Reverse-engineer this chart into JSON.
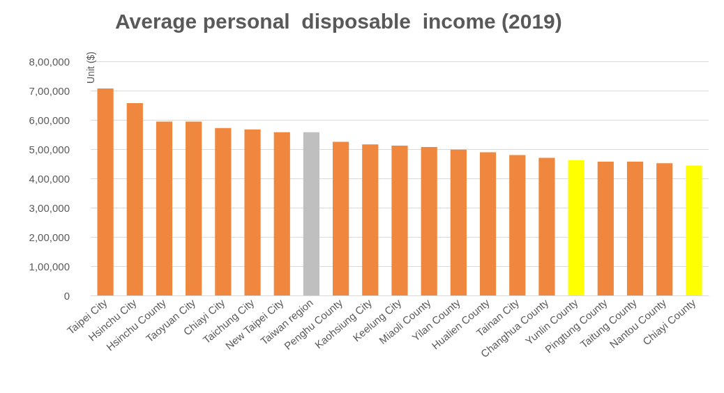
{
  "chart_data": {
    "type": "bar",
    "title": "Average personal  disposable  income (2019)",
    "ylabel": "Unit ($)",
    "categories": [
      "Taipei City",
      "Hsinchu City",
      "Hsinchu County",
      "Taoyuan City",
      "Chiayi City",
      "Taichung City",
      "New Taipei City",
      "Taiwan region",
      "Penghu County",
      "Kaohsiung City",
      "Keelung City",
      "Miaoli County",
      "Yilan County",
      "Hualien County",
      "Tainan City",
      "Changhua County",
      "Yunlin County",
      "Pingtung County",
      "Taitung County",
      "Nantou County",
      "Chiayi County"
    ],
    "values": [
      707000,
      657000,
      594000,
      594000,
      572000,
      567000,
      558000,
      558000,
      525000,
      516000,
      512000,
      507000,
      498000,
      489000,
      480000,
      470000,
      462000,
      457000,
      457000,
      452000,
      444000
    ],
    "colors": [
      "#f0873e",
      "#f0873e",
      "#f0873e",
      "#f0873e",
      "#f0873e",
      "#f0873e",
      "#f0873e",
      "#bfbfbf",
      "#f0873e",
      "#f0873e",
      "#f0873e",
      "#f0873e",
      "#f0873e",
      "#f0873e",
      "#f0873e",
      "#f0873e",
      "#ffff00",
      "#f0873e",
      "#f0873e",
      "#f0873e",
      "#ffff00"
    ],
    "ylim": [
      0,
      800000
    ],
    "yticks": [
      0,
      {
        "value": 100000,
        "label": "1,00,000"
      },
      {
        "value": 200000,
        "label": "2,00,000"
      },
      {
        "value": 300000,
        "label": "3,00,000"
      },
      {
        "value": 400000,
        "label": "4,00,000"
      },
      {
        "value": 500000,
        "label": "5,00,000"
      },
      {
        "value": 600000,
        "label": "6,00,000"
      },
      {
        "value": 700000,
        "label": "7,00,000"
      },
      {
        "value": 800000,
        "label": "8,00,000"
      }
    ],
    "grid": "y"
  }
}
